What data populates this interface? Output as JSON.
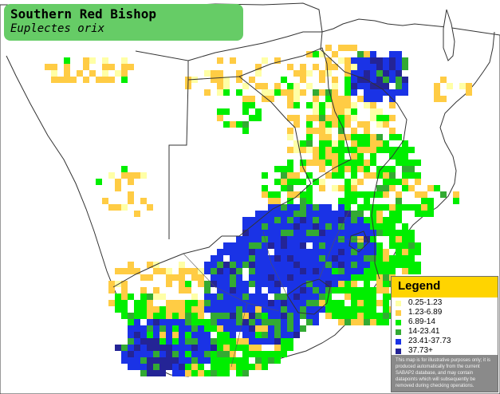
{
  "title": "Southern Red Bishop",
  "scientific_name": "Euplectes orix",
  "legend": {
    "title": "Legend",
    "items": [
      {
        "label": "0.25-1.23",
        "color": "#ffffa6"
      },
      {
        "label": "1.23-6.89",
        "color": "#ffcc44"
      },
      {
        "label": "6.89-14",
        "color": "#00ee00"
      },
      {
        "label": "14-23.41",
        "color": "#33aa33"
      },
      {
        "label": "23.41-37.73",
        "color": "#1a33e6"
      },
      {
        "label": "37.73+",
        "color": "#242496"
      }
    ],
    "note": "This map is for illustrative purposes only; it is produced automatically from the current SABAP2 database, and may contain datapoints which will subsequently be removed during checking operations."
  }
}
